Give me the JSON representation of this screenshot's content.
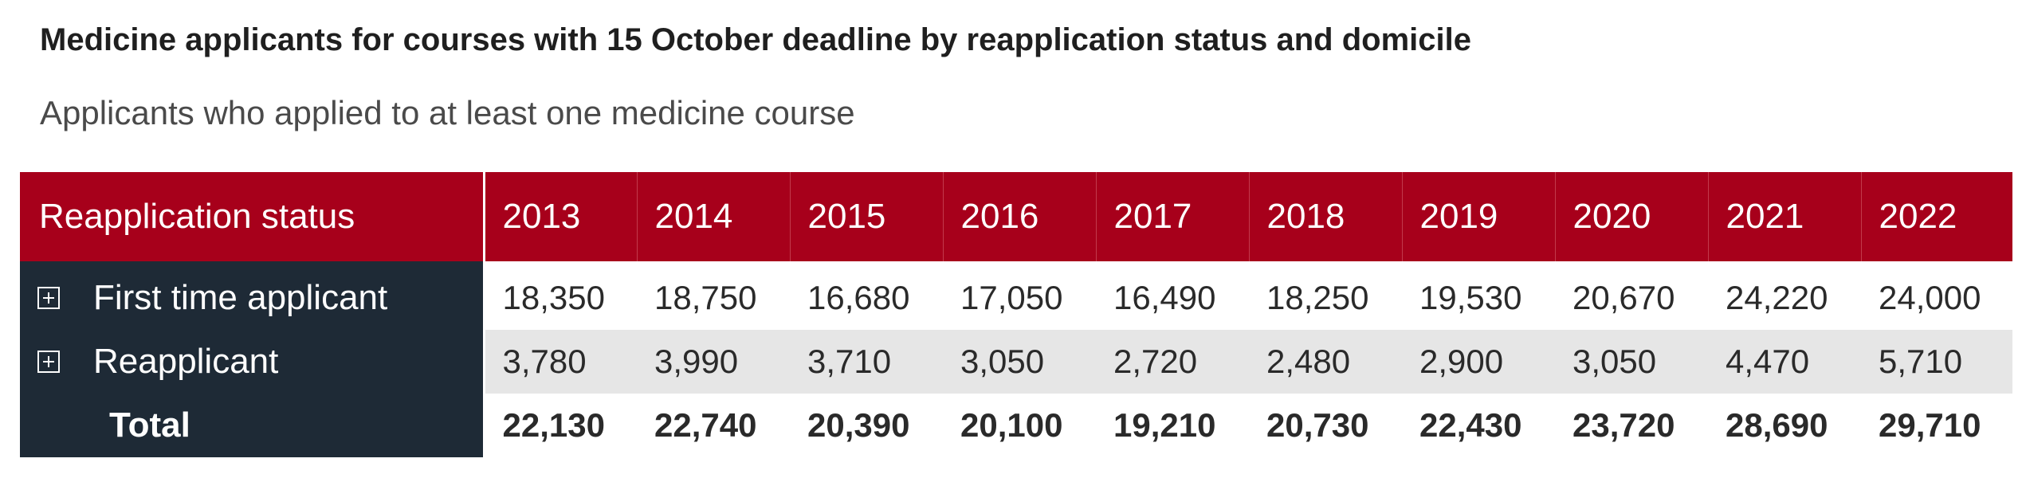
{
  "title": "Medicine applicants for courses with 15 October deadline  by reapplication status and domicile",
  "subtitle": "Applicants who applied to at least one medicine course",
  "chart_data": {
    "type": "table",
    "row_header": "Reapplication status",
    "columns": [
      "2013",
      "2014",
      "2015",
      "2016",
      "2017",
      "2018",
      "2019",
      "2020",
      "2021",
      "2022"
    ],
    "rows": [
      {
        "label": "First time applicant",
        "expandable": true,
        "values": [
          "18,350",
          "18,750",
          "16,680",
          "17,050",
          "16,490",
          "18,250",
          "19,530",
          "20,670",
          "24,220",
          "24,000"
        ]
      },
      {
        "label": "Reapplicant",
        "expandable": true,
        "values": [
          "3,780",
          "3,990",
          "3,710",
          "3,050",
          "2,720",
          "2,480",
          "2,900",
          "3,050",
          "4,470",
          "5,710"
        ]
      },
      {
        "label": "Total",
        "expandable": false,
        "values": [
          "22,130",
          "22,740",
          "20,390",
          "20,100",
          "19,210",
          "20,730",
          "22,430",
          "23,720",
          "28,690",
          "29,710"
        ]
      }
    ]
  },
  "colors": {
    "header_bg": "#a7001b",
    "stub_bg": "#1e2a36",
    "banded_row_bg": "#e6e6e6"
  },
  "icons": {
    "expand": "plus-square-icon"
  }
}
